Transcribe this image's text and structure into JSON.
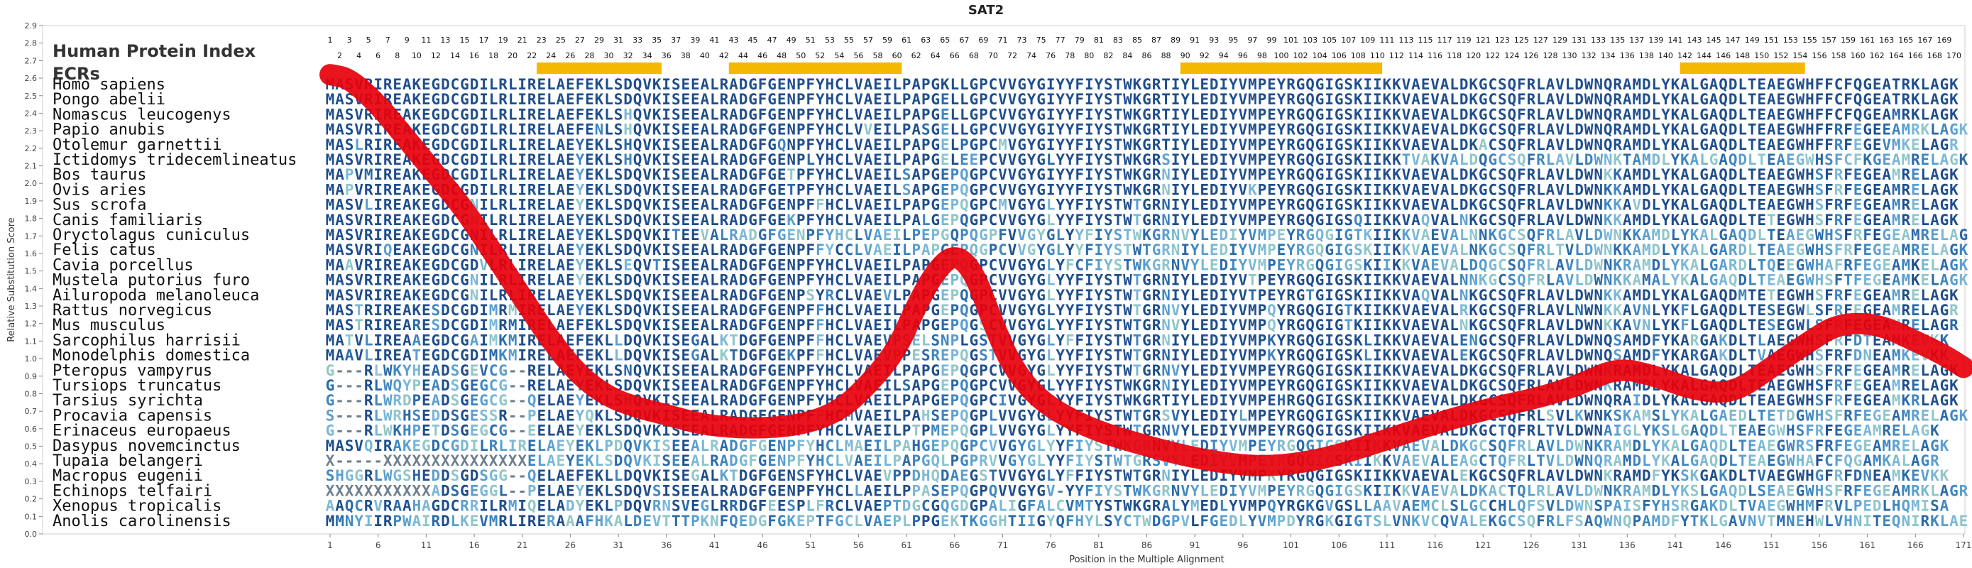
{
  "chart_data": {
    "type": "line",
    "title": "SAT2",
    "xlabel": "Position in the Multiple Alignment",
    "ylabel": "Relative Substitution Score",
    "xlim": [
      1,
      171
    ],
    "ylim": [
      0.0,
      2.9
    ],
    "yticks": [
      "0.0",
      "0.1",
      "0.2",
      "0.3",
      "0.4",
      "0.5",
      "0.6",
      "0.7",
      "0.8",
      "0.9",
      "1.0",
      "1.1",
      "1.2",
      "1.3",
      "1.4",
      "1.5",
      "1.6",
      "1.7",
      "1.8",
      "1.9",
      "2.0",
      "2.1",
      "2.2",
      "2.3",
      "2.4",
      "2.5",
      "2.6",
      "2.7",
      "2.8",
      "2.9"
    ],
    "xticks": [
      "1",
      "6",
      "11",
      "16",
      "21",
      "26",
      "31",
      "36",
      "41",
      "46",
      "51",
      "56",
      "61",
      "66",
      "71",
      "76",
      "81",
      "86",
      "91",
      "96",
      "101",
      "106",
      "111",
      "116",
      "121",
      "126",
      "131",
      "136",
      "141",
      "146",
      "151",
      "156",
      "161",
      "166",
      "171"
    ],
    "top_index_label": "Human Protein Index",
    "ecr_label": "ECRs",
    "ecr_color": "#f5b800",
    "curve_color": "#e8000b",
    "ecr_ranges": [
      [
        23,
        35
      ],
      [
        43,
        60
      ],
      [
        90,
        110
      ],
      [
        142,
        154
      ]
    ],
    "index_odd": [
      "1",
      "3",
      "5",
      "7",
      "9",
      "11",
      "13",
      "15",
      "17",
      "19",
      "21",
      "23",
      "25",
      "27",
      "29",
      "31",
      "33",
      "35",
      "37",
      "39",
      "41",
      "43",
      "45",
      "47",
      "49",
      "51",
      "53",
      "55",
      "57",
      "59",
      "61",
      "63",
      "65",
      "67",
      "69",
      "71",
      "73",
      "75",
      "77",
      "79",
      "81",
      "83",
      "85",
      "87",
      "89",
      "91",
      "93",
      "95",
      "97",
      "99",
      "101",
      "103",
      "105",
      "107",
      "109",
      "111",
      "113",
      "115",
      "117",
      "119",
      "121",
      "123",
      "125",
      "127",
      "129",
      "131",
      "133",
      "135",
      "137",
      "139",
      "141",
      "143",
      "145",
      "147",
      "149",
      "151",
      "153",
      "155",
      "157",
      "159",
      "161",
      "163",
      "165",
      "167",
      "169"
    ],
    "index_even": [
      "2",
      "4",
      "6",
      "8",
      "10",
      "12",
      "14",
      "16",
      "18",
      "20",
      "22",
      "24",
      "26",
      "28",
      "30",
      "32",
      "34",
      "36",
      "38",
      "40",
      "42",
      "44",
      "46",
      "48",
      "50",
      "52",
      "54",
      "56",
      "58",
      "60",
      "62",
      "64",
      "66",
      "68",
      "70",
      "72",
      "74",
      "76",
      "78",
      "80",
      "82",
      "84",
      "86",
      "88",
      "90",
      "92",
      "94",
      "96",
      "98",
      "100",
      "102",
      "104",
      "106",
      "108",
      "110",
      "112",
      "114",
      "116",
      "118",
      "120",
      "122",
      "124",
      "126",
      "128",
      "130",
      "132",
      "134",
      "136",
      "138",
      "140",
      "142",
      "144",
      "146",
      "148",
      "150",
      "152",
      "154",
      "156",
      "158",
      "160",
      "162",
      "164",
      "166",
      "168",
      "170"
    ],
    "curve_points": [
      [
        1,
        2.62
      ],
      [
        3,
        2.6
      ],
      [
        6,
        2.45
      ],
      [
        9,
        2.25
      ],
      [
        12,
        2.05
      ],
      [
        15,
        1.85
      ],
      [
        18,
        1.6
      ],
      [
        21,
        1.35
      ],
      [
        24,
        1.1
      ],
      [
        27,
        0.9
      ],
      [
        30,
        0.78
      ],
      [
        33,
        0.72
      ],
      [
        36,
        0.68
      ],
      [
        40,
        0.62
      ],
      [
        45,
        0.6
      ],
      [
        50,
        0.62
      ],
      [
        54,
        0.7
      ],
      [
        57,
        0.85
      ],
      [
        60,
        1.05
      ],
      [
        62,
        1.3
      ],
      [
        64,
        1.5
      ],
      [
        66,
        1.6
      ],
      [
        68,
        1.5
      ],
      [
        70,
        1.2
      ],
      [
        72,
        0.95
      ],
      [
        75,
        0.75
      ],
      [
        80,
        0.6
      ],
      [
        86,
        0.5
      ],
      [
        92,
        0.42
      ],
      [
        98,
        0.38
      ],
      [
        104,
        0.42
      ],
      [
        110,
        0.52
      ],
      [
        116,
        0.63
      ],
      [
        122,
        0.72
      ],
      [
        127,
        0.78
      ],
      [
        131,
        0.85
      ],
      [
        135,
        0.95
      ],
      [
        139,
        0.9
      ],
      [
        143,
        0.82
      ],
      [
        147,
        0.8
      ],
      [
        151,
        0.95
      ],
      [
        155,
        1.1
      ],
      [
        158,
        1.2
      ],
      [
        162,
        1.2
      ],
      [
        166,
        1.1
      ],
      [
        169,
        1.02
      ],
      [
        171,
        0.95
      ]
    ],
    "species": [
      {
        "name": "Homo sapiens",
        "seq": "MASVRIREAKEGDCGDILRLIRELAEFEKLSDQVKISEEALRADGFGENPFYHCLVAEILPAPGKLLGPCVVGYGIYYFIYSTWKGRTIYLEDIYVMPEYRGQGIGSKIIKKVAEVALDKGCSQFRLAVLDWNQRAMDLYKALGAQDLTEAEGWHFFCFQGEATRKLAGK"
      },
      {
        "name": "Pongo abelii",
        "seq": "MASVRIREAKEGDCGDILRLIRELAEFEKLSDQVKISEEALRADGFGENPFYHCLVAEILPAPGELLGPCVVGYGIYYFIYSTWKGRTIYLEDIYVMPEYRGQGIGSKIIKKVAEVALDKGCSQFRLAVLDWNQRAMDLYKALGAQDLTEAEGWHFFCFQGEATRKLAGK"
      },
      {
        "name": "Nomascus leucogenys",
        "seq": "MASVRIREAKEGDCGDILRLIRELAEFEKLSHQVKISEEALRADGFGENPFYHCLVAEILPAPGELLGPCVVGYGIYYFIYSTWKGRTIYLEDIYVMPEYRGQGIGSKIIKKVAEVALDKGCSQFRLAVLDWNQRAMDLYKALGAQDLTEAEGWHFFCFQGEAMRKLAGK"
      },
      {
        "name": "Papio anubis",
        "seq": "MASVRIREAKEGDCGDILRLIRELAEFENLSHQVKISEEALRADGFGENPFYHCLVVEILPASGELLGPCVVGYGIYYFIYSTWKGRTIYLEDIYVMPEYRGQGIGSKIIKKVAEVALDKGCSQFRLAVLDWNQRAMDLYKALGAQDLTEAEGWHFFRFEGEEAMRKLAGK"
      },
      {
        "name": "Otolemur garnettii",
        "seq": "MASLRIREAKEGDCGDILRLIRELAEYEKLSHQVKISEEALRADGFGQNPFYHCLVAEILPAPGELPGPCMVGYGIYYFIYSTWKGRTIYLEDIYVMPEYRGQGIGSKIIKKVAEVALDKACSQFRLAVLDWNQRAMDLYKALGAQDLTEAEGWHFFRFEGEVMKELAGR"
      },
      {
        "name": "Ictidomys tridecemlineatus",
        "seq": "MASVRIREAKEGDCGDILRLIRELAEYEKLSHQVKISEEALRADGFGENPLYHCLVAEILPAPGELEEPCVVGYGLYYFIYSTWKGRSIYLEDIYVMPEYRGQGIGSKIIKKTVAKVALDQGCSQFRLAVLDWNKTAMDLYKALGAQDLTEAEGWHSFCFKGEAMRELAGK"
      },
      {
        "name": "Bos taurus",
        "seq": "MAPVMIREAKEGDCGDILRLIRELAEYEKLSDQVKISEEALRADGFGETPFYHCLVAEILSAPGEPQGPCVVGYGIYYFIYSTWKGRNIYLEDIYVMPEYRGQGIGSKIIKKVAEVALDKGCSQFRLAVLDWNKKAMDLYKALGAQDLTEAEGWHSFRFEGEAMRELAGK"
      },
      {
        "name": "Ovis aries",
        "seq": "MAPVRIREAKEGDCGDILRLIRELAEYEKLSDQVKISEEALRADGFGETPFYHCLVAEILSAPGEPQGPCVVGYGIYYFIYSTWKGRNIYLEDIYVKPEYRGQGIGSKIIKKVAEVALDKGCSQFRLAVLDWNKKAMDLYKALGAQDLTEAEGWHSFRFEGEAMRELAGK"
      },
      {
        "name": "Sus scrofa",
        "seq": "MASVLIREAKEGDCGNILRLIRELAEYEKLSDQVKISEEALRADGFGENPFFHCLVAEILPAPGEPQGPCMVGYGLYYFIYSTWTGRNIYLEDIYVMPEYRGQGIGSKIIKKVAEVALDKGCSQFRLAVLDWNKKAVDLYKALGAQDLTEAEGWHSFRFEGEAMRELAGK"
      },
      {
        "name": "Canis familiaris",
        "seq": "MASVRIREAKEGDCGNILRLIRELAEYEKLSDQVKISEEALRADGFGEKPFYHCLVAEILPALGEPQGPCVVGYGLYYFIYSTWTGRNIYLEDIYVMPEYRGQGIGSQIIKKVAQVALNKGCSQFRLAVLDWNKKAMDLYKALGAQDLTETEGWHSFRFEGEAMRELAGK"
      },
      {
        "name": "Oryctolagus cuniculus",
        "seq": "MASVRIREAKEGDCGNILRLIRELAEYEKLSDQVKITEEVALRADGFGENPFYHCLVAEILPEPGQPQGPFVVGYGLYYFIYSTWKGRNVYLEDIYVMPEYRGQGIGTKIIKKVAEVALNNKGCSQFRLAVLDWNKKAMDLYKALGAQDLTEAEGWHSFRFEGEAMRELAGK"
      },
      {
        "name": "Felis catus",
        "seq": "MASVRIQEAKEGDCGNILRLIRELAEYEKLSDQVKISEEALRADGFGENPFFYCCLVAEILPAPGEPQGPCVVGYGLYYFIYSTWTGRNIYLEDIYVMPEYRGQGIGSKIIKKVAEVALNKGCSQFRLTVLDWNKKAMDLYKALGARDLTEAEGWHSFRFEGEAMRELAGK"
      },
      {
        "name": "Cavia porcellus",
        "seq": "MAAVRIREAKEGDCGDVLRLIRELAEYEKLSEQVTISEEALRADGFGENPFYHCLVAEILPAPGEPQGPCVVGYGLYFCFIYSTWKGRNVYLEDIYVMPEYRGQGIGSKIIKKVAEVALDQGCSQFRLAVLDWNKRAMDLYKALGARDLTQEEGWHAFRFEGEAMKELAGK"
      },
      {
        "name": "Mustela putorius furo",
        "seq": "MASVRIREAKEGDCGNILRLIRELAEYEKLSDQVKISEEALRADGFGENPFYHCLVAEILPAPGEPQGPCVVGYGLYYFIYSTWTGRNIYLEDIYVTPEYRGQGIGSKIIKKVAEVALNNKGCSQFRLAVLDWNKKAMALYKALGAQDLTEAEGWHSFTFEGEAMKELAGK"
      },
      {
        "name": "Ailuropoda melanoleuca",
        "seq": "MASVRIREAKEGDCGNILRLIRELAEYEKLSDQVKISEEALRADGFGENPSYRCLVAEVLPAPGEPQGPCVVGYGLYYFIYSTWTGRNIYLEDIYVTPEYRGTGIGSKIIKKVAQVALNKGCSQFRLAVLDWNKKAMDLYKALGAQDMTETEGWHSFRFEGEAMRELAGK"
      },
      {
        "name": "Rattus norvegicus",
        "seq": "MASTRIREAKESDCGDIMRMIRELAEYEKLSDQVKISEEALRADGFGENPFFHCLVAEILPAPGEPQGPCVVGYGLYYFIYSTWTGRNVYLEDIYVMPQYRGQGIGTKIIKKVAEVALRKGCSQFRLAVLNWNKKAVNLYKFLGAQDLTESEGWLSFRFEGEAMRELAGR"
      },
      {
        "name": "Mus musculus",
        "seq": "MASTRIREARESDCGDIMRMIRELAEFEKLSDQVKISEEALRADGFGENPFFHCLVAEILPAPGEPQGSCVVGYGLYYFIYSTWTGRNVYLEDIYVMPQYRGQGIGTKIIKKVAEVALNKGCSQFRLAVLDWNKKAVNLYKFLGAQDLTESEGWLSFRFEGEAMRELAGR"
      },
      {
        "name": "Sarcophilus harrisii",
        "seq": "MATVLIREAAEGDCGAIMKMIRELAEFEKLLDQVKISEGALKTDGFGENPFFHCLVAEVPSELSNPLGSTVVGYGLYFFIYSTWTGRNIYLEDIYVMPKYRGQGIGSKLIKKVAEVALENGCSQFRLAVLDWNQSAMDFYKARGAKDLTLAEGWHSFRFDTEAMKEVKK"
      },
      {
        "name": "Monodelphis domestica",
        "seq": "MAAVLIREATEGDCGDIMKMIRELAEFEKLLDQVKISEGALKTDGFGEKPFFHCLVAEVPPESREPQGSTVVGYGLYYFIYSTWTGRNIYLEDIYVMPKYRGQGIGSKLIKKVAEVALEKGCSQFRLAVLDWNQSAMDFYKARGAKDLTVAEGWHSFRFDNEAMKEVKK"
      },
      {
        "name": "Pteropus vampyrus",
        "seq": "G---RLWKYHEADSGEVCG--RELAEYEKLSNQVKISEEALRADGFGENPFYHCLVAEILPAPGEPQGPCVVGYGLYYFIYSTWTGRNVYLEDIYVMPEYRGQGIGSKIIKKVAEVALDKGCSQFRLAVLDWNKRAMDLYKALGAQDLTEAEGWHSFRFEGEAMRELAGK"
      },
      {
        "name": "Tursiops truncatus",
        "seq": "G---RLWQYPEADSGEGCG--RELAEYEKLSDQVKISEEALRADGFGENPFYHCLVAEILSAPGEPQGPCVVGYGLYYFIYSTWKGRNIYLEDIYVMPEYRGQGIGSKIIKKVAEVALDKGCSQFRLAVLDWNKRAMDLYKALGAQDLTEAEGWHSFRFEGEAMRELAGK"
      },
      {
        "name": "Tarsius syrichta",
        "seq": "G---RLWRDPEADSGEGCG--QELAEYEKLSHQVKISEEALRADGFGENPFYHCLVAEILPAPGEPQGPCIVGYGLYYFIYSTWKGRTIYLEDIYVMPEHRGQGIGSKIIKKVAEVALDKGCSQFRLAVLDWNQRAIDLYKALGAQDLTEAEGWHSFRFEGEAMKRLAGK"
      },
      {
        "name": "Procavia capensis",
        "seq": "S---RLWRHSEDDSGESSR--PELAEYQKLSDQVKISEEALRADGFGENPFFHCMVAEILPAHSEPQGPLVVGYGLYYFIYSTWTGRSVYLEDIYLMPEYRGQGIGSKIIKKVAEVALDKGCSQFRLSVLKWNKSKAMSLYKALGAEDLTETDGWHSFRFEGEAMRELAGK"
      },
      {
        "name": "Erinaceus europaeus",
        "seq": "G---RLWKHPETDSGEGCG--EELAEYEKLSDQVKISEEALRADGFGENPFYHCLVAEILPTPMEPQGPLVVGYGLYYFIYSTWTGRNVYLEDIYVMPEYRGQGIGSKIIKKVAEVALDKGCTQFRLTVLDWNAIGLYKSLGAQDLTEAEGWHSFRFEGEAMRELAGK"
      },
      {
        "name": "Dasypus novemcinctus",
        "seq": "MASVQIRAKEGDCGDILRLIRELAEYEKLPDQVKISEEALRADGFGENPFYHCLMAEILPAHGEPQGPCVVGYGLYYFIYSTWKGRNVYLEDIYVMPEYRGQGIGSKIIKKVAEVALDKGCSQFRLAVLDWNKRAMDLYKALGAQDLTEAEGWRSFRFEGEAMRELAGK"
      },
      {
        "name": "Tupaia belangeri",
        "seq": "X-----XXXXXXXXXXXXXXXELAEYEKLSDQVKISEEALRADGFGENPFYHCLVAEILPAPGQLPGPRVVGYGLYYFIYSTWTGRSVYLEDIYVMPEYRGQGIGSKIIKKVAEVALEAGCTQFRLTVLDWNQRAMDLYKALGAQDLTEAEGWHAFCFQGAMKALAGR"
      },
      {
        "name": "Macropus eugenii",
        "seq": "SHGGRLWGSHEDDSGDSGG--QELAEFEKLLDQVKISEGALKTDGFGENSFYHCLVAEVPPDHQDAEGSTVVGYGLYFFIYSTWTGRNIYLEDIYVMPKYRGQGIGSKIIKKVAEVALEKGCSQFRLAVLDWNKRAMDFYKSKGAKDLTVAEGWHGFRFDNEAMKEVKK"
      },
      {
        "name": "Echinops telfairi",
        "seq": "XXXXXXXXXXXADSGEGGL--PELAEYEKLSDQVSISEEALRADGFGENPFYHCLLAEILPPASEPQGPQVVGYGV-YYFIYSTWKGRNVYLEDIYVMPEYRGQGIGSKIIKKVAEVALDKACTQLRLAVLDWNKRAMDLYKSLGAQDLSEAEGWHSFRFEGEAMRKLAGR"
      },
      {
        "name": "Xenopus tropicalis",
        "seq": "AAQCRVRAAHAGDCRRILRMIQELADYEKLPDQVRNSVEGLRRDGFEESPLFRCLVAEPTDGCGQGDGPALIGFALCVMTYSTWKGRALYMEDLYVMPQYRGKGVGSLLAAVAEMCLSLGCCHLQFSVLDWNSPAISFYHSRGAKDLTVAEGWHMFRVLPEDLHQMISA"
      },
      {
        "name": "Anolis carolinensis",
        "seq": "MMNYIIRPWAIRDLKEVMRLIRERAAAFHKALDEVTTTPKNFQEDGFGKEPTFGCLVAEPLPPGEKTKGGHTIIGYQFHYLSYCTWDGPVLFGEDLYVMPDYRGKGIGTSLVNKVCQVALEKGCSQFRLFSAQWNQPAMDFYTKLGAVNVTMNEHWLVHNITEQNIRKLAEQ"
      }
    ]
  }
}
